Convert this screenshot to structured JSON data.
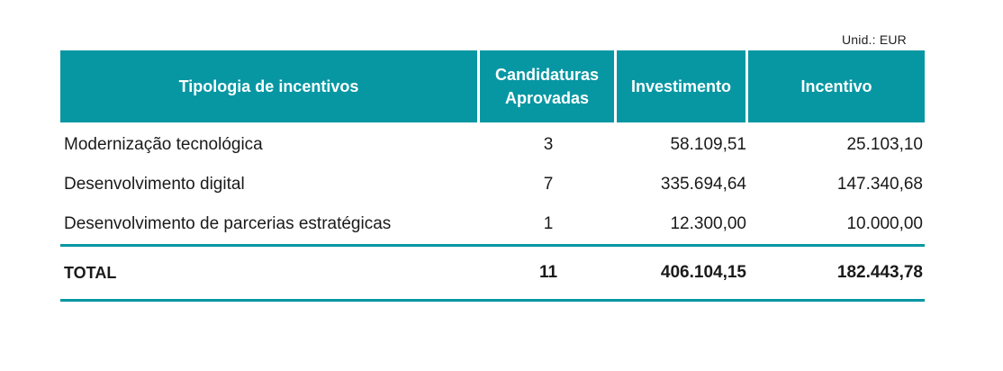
{
  "table": {
    "unit_label": "Unid.: EUR",
    "headers": {
      "tipologia": "Tipologia de incentivos",
      "candidaturas_line1": "Candidaturas",
      "candidaturas_line2": "Aprovadas",
      "investimento": "Investimento",
      "incentivo": "Incentivo"
    },
    "rows": [
      {
        "tipologia": "Modernização tecnológica",
        "candidaturas": "3",
        "investimento": "58.109,51",
        "incentivo": "25.103,10"
      },
      {
        "tipologia": "Desenvolvimento digital",
        "candidaturas": "7",
        "investimento": "335.694,64",
        "incentivo": "147.340,68"
      },
      {
        "tipologia": "Desenvolvimento de parcerias estratégicas",
        "candidaturas": "1",
        "investimento": "12.300,00",
        "incentivo": "10.000,00"
      }
    ],
    "total": {
      "label": "TOTAL",
      "candidaturas": "11",
      "investimento": "406.104,15",
      "incentivo": "182.443,78"
    },
    "colors": {
      "header_bg": "#0797a3",
      "header_text": "#ffffff",
      "rule": "#0797a3"
    }
  }
}
